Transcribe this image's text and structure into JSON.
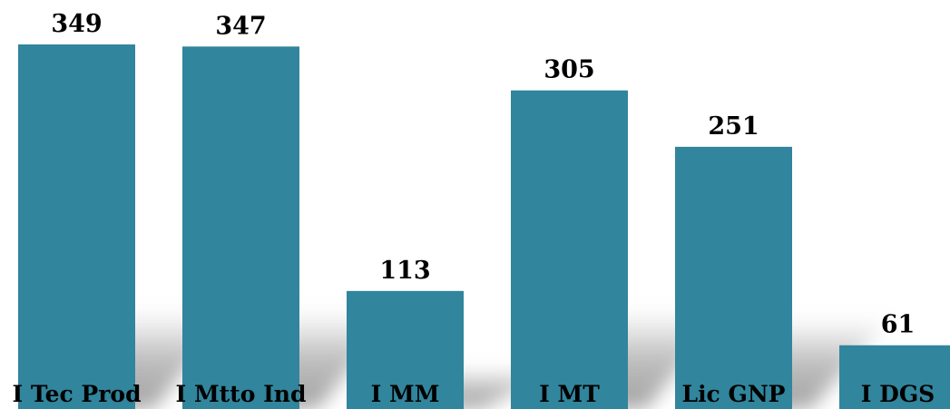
{
  "chart_data": {
    "type": "bar",
    "categories": [
      "I Tec Prod",
      "I Mtto Ind",
      "I MM",
      "I MT",
      "Lic GNP",
      "I DGS"
    ],
    "values": [
      349,
      347,
      113,
      305,
      251,
      61
    ],
    "title": "",
    "xlabel": "",
    "ylabel": "",
    "ylim": [
      0,
      349
    ],
    "grid": false,
    "legend": "none",
    "bar_color": "#31859c",
    "shadow": true,
    "data_labels": true
  }
}
